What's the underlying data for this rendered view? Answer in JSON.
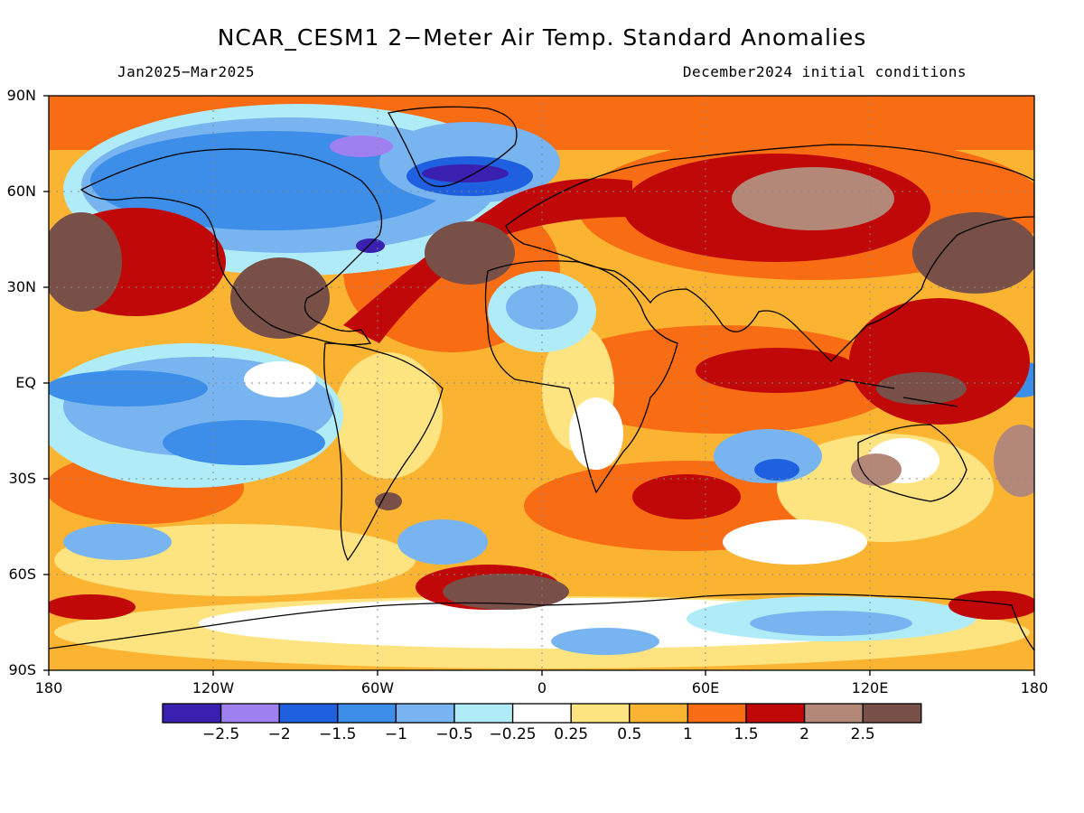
{
  "title": "NCAR_CESM1 2−Meter Air Temp. Standard Anomalies",
  "period": "Jan2025−Mar2025",
  "init": "December2024 initial conditions",
  "lat_labels": [
    "90N",
    "60N",
    "30N",
    "EQ",
    "30S",
    "60S",
    "90S"
  ],
  "lon_labels": [
    "180",
    "120W",
    "60W",
    "0",
    "60E",
    "120E",
    "180"
  ],
  "colorbar": {
    "colors": [
      "#3a20b0",
      "#9f80f0",
      "#1e60e0",
      "#3c8ee8",
      "#78b4f0",
      "#b0ecf8",
      "#ffffff",
      "#fee480",
      "#fbb432",
      "#f86c14",
      "#c00808",
      "#b48878",
      "#785048"
    ],
    "labels": [
      "−2.5",
      "−2",
      "−1.5",
      "−1",
      "−0.5",
      "−0.25",
      "0.25",
      "0.5",
      "1",
      "1.5",
      "2",
      "2.5"
    ]
  }
}
